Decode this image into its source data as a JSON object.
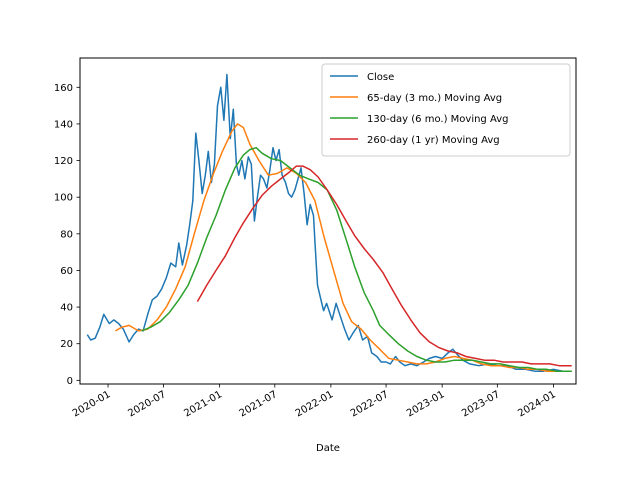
{
  "chart_data": {
    "type": "line",
    "title": "",
    "xlabel": "Date",
    "ylabel": "",
    "x_axis_type": "date",
    "xlim": [
      "2019-10-01",
      "2024-03-15"
    ],
    "ylim": [
      -2,
      176
    ],
    "x_ticks": [
      {
        "date": "2020-01-01",
        "label": "2020-01"
      },
      {
        "date": "2020-07-01",
        "label": "2020-07"
      },
      {
        "date": "2021-01-01",
        "label": "2021-01"
      },
      {
        "date": "2021-07-01",
        "label": "2021-07"
      },
      {
        "date": "2022-01-01",
        "label": "2022-01"
      },
      {
        "date": "2022-07-01",
        "label": "2022-07"
      },
      {
        "date": "2023-01-01",
        "label": "2023-01"
      },
      {
        "date": "2023-07-01",
        "label": "2023-07"
      },
      {
        "date": "2024-01-01",
        "label": "2024-01"
      }
    ],
    "y_ticks": [
      0,
      20,
      40,
      60,
      80,
      100,
      120,
      140,
      160
    ],
    "grid": false,
    "legend_position": "top-right",
    "series": [
      {
        "name": "Close",
        "color": "#1f77b4",
        "points": [
          [
            "2019-10-25",
            25
          ],
          [
            "2019-11-05",
            22
          ],
          [
            "2019-11-20",
            23
          ],
          [
            "2019-12-05",
            29
          ],
          [
            "2019-12-18",
            36
          ],
          [
            "2020-01-05",
            31
          ],
          [
            "2020-01-20",
            33
          ],
          [
            "2020-02-05",
            31
          ],
          [
            "2020-02-20",
            28
          ],
          [
            "2020-03-10",
            21
          ],
          [
            "2020-03-25",
            25
          ],
          [
            "2020-04-10",
            28
          ],
          [
            "2020-04-25",
            27
          ],
          [
            "2020-05-10",
            36
          ],
          [
            "2020-05-25",
            44
          ],
          [
            "2020-06-10",
            46
          ],
          [
            "2020-06-25",
            50
          ],
          [
            "2020-07-10",
            56
          ],
          [
            "2020-07-25",
            64
          ],
          [
            "2020-08-10",
            62
          ],
          [
            "2020-08-20",
            75
          ],
          [
            "2020-09-01",
            63
          ],
          [
            "2020-09-15",
            74
          ],
          [
            "2020-09-25",
            85
          ],
          [
            "2020-10-05",
            98
          ],
          [
            "2020-10-15",
            135
          ],
          [
            "2020-10-25",
            120
          ],
          [
            "2020-11-05",
            102
          ],
          [
            "2020-11-15",
            112
          ],
          [
            "2020-11-25",
            125
          ],
          [
            "2020-12-05",
            108
          ],
          [
            "2020-12-15",
            118
          ],
          [
            "2020-12-25",
            150
          ],
          [
            "2021-01-05",
            160
          ],
          [
            "2021-01-15",
            142
          ],
          [
            "2021-01-25",
            167
          ],
          [
            "2021-02-05",
            132
          ],
          [
            "2021-02-15",
            148
          ],
          [
            "2021-02-25",
            118
          ],
          [
            "2021-03-05",
            112
          ],
          [
            "2021-03-15",
            120
          ],
          [
            "2021-03-25",
            110
          ],
          [
            "2021-04-05",
            122
          ],
          [
            "2021-04-15",
            118
          ],
          [
            "2021-04-25",
            87
          ],
          [
            "2021-05-05",
            100
          ],
          [
            "2021-05-15",
            112
          ],
          [
            "2021-05-25",
            110
          ],
          [
            "2021-06-05",
            105
          ],
          [
            "2021-06-15",
            115
          ],
          [
            "2021-06-25",
            127
          ],
          [
            "2021-07-05",
            120
          ],
          [
            "2021-07-15",
            126
          ],
          [
            "2021-07-25",
            112
          ],
          [
            "2021-08-05",
            108
          ],
          [
            "2021-08-15",
            102
          ],
          [
            "2021-08-25",
            100
          ],
          [
            "2021-09-05",
            104
          ],
          [
            "2021-09-15",
            110
          ],
          [
            "2021-09-25",
            116
          ],
          [
            "2021-10-05",
            102
          ],
          [
            "2021-10-15",
            85
          ],
          [
            "2021-10-25",
            96
          ],
          [
            "2021-11-05",
            90
          ],
          [
            "2021-11-10",
            75
          ],
          [
            "2021-11-18",
            52
          ],
          [
            "2021-11-28",
            45
          ],
          [
            "2021-12-08",
            38
          ],
          [
            "2021-12-18",
            42
          ],
          [
            "2022-01-05",
            33
          ],
          [
            "2022-01-18",
            42
          ],
          [
            "2022-02-01",
            35
          ],
          [
            "2022-02-15",
            28
          ],
          [
            "2022-03-01",
            22
          ],
          [
            "2022-03-15",
            26
          ],
          [
            "2022-04-01",
            30
          ],
          [
            "2022-04-15",
            22
          ],
          [
            "2022-05-01",
            24
          ],
          [
            "2022-05-15",
            15
          ],
          [
            "2022-06-01",
            13
          ],
          [
            "2022-06-15",
            10
          ],
          [
            "2022-07-01",
            10
          ],
          [
            "2022-07-15",
            9
          ],
          [
            "2022-08-01",
            13
          ],
          [
            "2022-08-15",
            10
          ],
          [
            "2022-09-01",
            8
          ],
          [
            "2022-09-20",
            9
          ],
          [
            "2022-10-10",
            8
          ],
          [
            "2022-11-01",
            10
          ],
          [
            "2022-11-20",
            12
          ],
          [
            "2022-12-10",
            13
          ],
          [
            "2023-01-01",
            12
          ],
          [
            "2023-01-20",
            15
          ],
          [
            "2023-02-05",
            17
          ],
          [
            "2023-02-20",
            14
          ],
          [
            "2023-03-10",
            11
          ],
          [
            "2023-04-01",
            9
          ],
          [
            "2023-05-01",
            8
          ],
          [
            "2023-06-01",
            9
          ],
          [
            "2023-07-01",
            8
          ],
          [
            "2023-08-01",
            8
          ],
          [
            "2023-09-01",
            6
          ],
          [
            "2023-10-01",
            6
          ],
          [
            "2023-11-01",
            5
          ],
          [
            "2023-12-01",
            5
          ],
          [
            "2024-01-01",
            6
          ],
          [
            "2024-02-01",
            5
          ],
          [
            "2024-03-01",
            5
          ]
        ]
      },
      {
        "name": "65-day (3 mo.) Moving Avg",
        "color": "#ff7f0e",
        "points": [
          [
            "2020-01-25",
            27
          ],
          [
            "2020-02-15",
            29
          ],
          [
            "2020-03-10",
            30
          ],
          [
            "2020-04-10",
            27
          ],
          [
            "2020-05-10",
            28
          ],
          [
            "2020-06-10",
            33
          ],
          [
            "2020-07-10",
            40
          ],
          [
            "2020-08-10",
            50
          ],
          [
            "2020-09-10",
            62
          ],
          [
            "2020-10-10",
            80
          ],
          [
            "2020-11-10",
            98
          ],
          [
            "2020-12-10",
            112
          ],
          [
            "2021-01-10",
            125
          ],
          [
            "2021-02-10",
            136
          ],
          [
            "2021-03-01",
            140
          ],
          [
            "2021-03-20",
            138
          ],
          [
            "2021-04-10",
            129
          ],
          [
            "2021-05-10",
            120
          ],
          [
            "2021-06-10",
            112
          ],
          [
            "2021-07-10",
            113
          ],
          [
            "2021-08-10",
            116
          ],
          [
            "2021-09-10",
            113
          ],
          [
            "2021-10-10",
            108
          ],
          [
            "2021-11-10",
            98
          ],
          [
            "2021-12-10",
            78
          ],
          [
            "2022-01-10",
            60
          ],
          [
            "2022-02-10",
            42
          ],
          [
            "2022-03-10",
            32
          ],
          [
            "2022-04-10",
            28
          ],
          [
            "2022-05-10",
            22
          ],
          [
            "2022-06-10",
            17
          ],
          [
            "2022-07-10",
            12
          ],
          [
            "2022-08-10",
            11
          ],
          [
            "2022-09-10",
            10
          ],
          [
            "2022-10-10",
            9
          ],
          [
            "2022-11-10",
            9
          ],
          [
            "2022-12-10",
            10
          ],
          [
            "2023-01-10",
            12
          ],
          [
            "2023-02-10",
            13
          ],
          [
            "2023-03-10",
            12
          ],
          [
            "2023-04-10",
            11
          ],
          [
            "2023-05-10",
            9
          ],
          [
            "2023-06-10",
            8
          ],
          [
            "2023-07-10",
            8
          ],
          [
            "2023-08-10",
            7
          ],
          [
            "2023-09-10",
            7
          ],
          [
            "2023-10-10",
            6
          ],
          [
            "2023-11-10",
            6
          ],
          [
            "2023-12-10",
            5
          ],
          [
            "2024-01-10",
            5
          ],
          [
            "2024-02-10",
            5
          ],
          [
            "2024-03-01",
            5
          ]
        ]
      },
      {
        "name": "130-day (6 mo.) Moving Avg",
        "color": "#2ca02c",
        "points": [
          [
            "2020-04-20",
            27
          ],
          [
            "2020-05-20",
            29
          ],
          [
            "2020-06-20",
            32
          ],
          [
            "2020-07-20",
            37
          ],
          [
            "2020-08-20",
            44
          ],
          [
            "2020-09-20",
            52
          ],
          [
            "2020-10-20",
            64
          ],
          [
            "2020-11-20",
            78
          ],
          [
            "2020-12-20",
            90
          ],
          [
            "2021-01-20",
            104
          ],
          [
            "2021-02-20",
            116
          ],
          [
            "2021-03-20",
            123
          ],
          [
            "2021-04-10",
            126
          ],
          [
            "2021-05-01",
            127
          ],
          [
            "2021-05-20",
            124
          ],
          [
            "2021-06-20",
            121
          ],
          [
            "2021-07-20",
            120
          ],
          [
            "2021-08-20",
            116
          ],
          [
            "2021-09-20",
            112
          ],
          [
            "2021-10-20",
            110
          ],
          [
            "2021-11-20",
            108
          ],
          [
            "2021-12-20",
            104
          ],
          [
            "2022-01-20",
            93
          ],
          [
            "2022-02-20",
            77
          ],
          [
            "2022-03-20",
            62
          ],
          [
            "2022-04-20",
            48
          ],
          [
            "2022-05-20",
            38
          ],
          [
            "2022-06-10",
            30
          ],
          [
            "2022-07-10",
            25
          ],
          [
            "2022-08-10",
            20
          ],
          [
            "2022-09-10",
            16
          ],
          [
            "2022-10-10",
            13
          ],
          [
            "2022-11-10",
            11
          ],
          [
            "2022-12-10",
            10
          ],
          [
            "2023-01-10",
            10
          ],
          [
            "2023-02-10",
            11
          ],
          [
            "2023-03-10",
            11
          ],
          [
            "2023-04-10",
            11
          ],
          [
            "2023-05-10",
            10
          ],
          [
            "2023-06-10",
            9
          ],
          [
            "2023-07-10",
            9
          ],
          [
            "2023-08-10",
            8
          ],
          [
            "2023-09-10",
            7
          ],
          [
            "2023-10-10",
            7
          ],
          [
            "2023-11-10",
            6
          ],
          [
            "2023-12-10",
            6
          ],
          [
            "2024-01-10",
            5
          ],
          [
            "2024-02-10",
            5
          ],
          [
            "2024-03-01",
            5
          ]
        ]
      },
      {
        "name": "260-day (1 yr) Moving Avg",
        "color": "#d62728",
        "points": [
          [
            "2020-10-20",
            43
          ],
          [
            "2020-11-20",
            52
          ],
          [
            "2020-12-20",
            60
          ],
          [
            "2021-01-20",
            68
          ],
          [
            "2021-02-20",
            78
          ],
          [
            "2021-03-20",
            86
          ],
          [
            "2021-04-20",
            94
          ],
          [
            "2021-05-20",
            101
          ],
          [
            "2021-06-20",
            106
          ],
          [
            "2021-07-20",
            110
          ],
          [
            "2021-08-20",
            114
          ],
          [
            "2021-09-10",
            117
          ],
          [
            "2021-10-01",
            117
          ],
          [
            "2021-10-25",
            115
          ],
          [
            "2021-11-20",
            111
          ],
          [
            "2021-12-20",
            104
          ],
          [
            "2022-01-20",
            96
          ],
          [
            "2022-02-20",
            87
          ],
          [
            "2022-03-20",
            79
          ],
          [
            "2022-04-20",
            72
          ],
          [
            "2022-05-20",
            66
          ],
          [
            "2022-06-20",
            59
          ],
          [
            "2022-07-20",
            50
          ],
          [
            "2022-08-20",
            41
          ],
          [
            "2022-09-20",
            33
          ],
          [
            "2022-10-20",
            26
          ],
          [
            "2022-11-20",
            21
          ],
          [
            "2022-12-20",
            18
          ],
          [
            "2023-01-20",
            16
          ],
          [
            "2023-02-20",
            15
          ],
          [
            "2023-03-20",
            13
          ],
          [
            "2023-04-20",
            12
          ],
          [
            "2023-05-20",
            11
          ],
          [
            "2023-06-20",
            11
          ],
          [
            "2023-07-20",
            10
          ],
          [
            "2023-08-20",
            10
          ],
          [
            "2023-09-20",
            10
          ],
          [
            "2023-10-20",
            9
          ],
          [
            "2023-11-20",
            9
          ],
          [
            "2023-12-20",
            9
          ],
          [
            "2024-01-20",
            8
          ],
          [
            "2024-02-20",
            8
          ],
          [
            "2024-03-01",
            8
          ]
        ]
      }
    ]
  }
}
